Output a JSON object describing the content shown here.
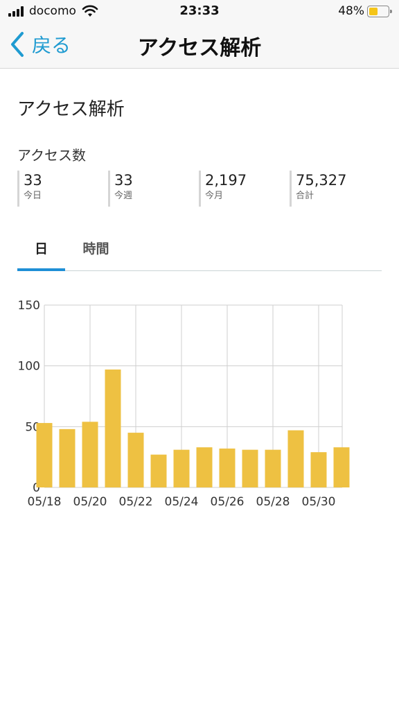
{
  "status_bar": {
    "carrier": "docomo",
    "time": "23:33",
    "battery_percent": "48%",
    "battery_level": 0.48,
    "battery_color": "#f5c518"
  },
  "nav": {
    "back_label": "戻る",
    "title": "アクセス解析",
    "accent_color": "#1f9bd1"
  },
  "page": {
    "heading": "アクセス解析",
    "section_label": "アクセス数"
  },
  "stats": [
    {
      "value": "33",
      "label": "今日"
    },
    {
      "value": "33",
      "label": "今週"
    },
    {
      "value": "2,197",
      "label": "今月"
    },
    {
      "value": "75,327",
      "label": "合計"
    }
  ],
  "tabs": [
    {
      "label": "日",
      "active": true
    },
    {
      "label": "時間",
      "active": false
    }
  ],
  "chart_data": {
    "type": "bar",
    "categories": [
      "05/18",
      "05/19",
      "05/20",
      "05/21",
      "05/22",
      "05/23",
      "05/24",
      "05/25",
      "05/26",
      "05/27",
      "05/28",
      "05/29",
      "05/30",
      "05/31"
    ],
    "values": [
      53,
      48,
      54,
      97,
      45,
      27,
      31,
      33,
      32,
      31,
      31,
      47,
      29,
      33
    ],
    "tick_labels_x": [
      "05/18",
      "05/20",
      "05/22",
      "05/24",
      "05/26",
      "05/28",
      "05/30"
    ],
    "yticks": [
      0,
      50,
      100,
      150
    ],
    "ylim": [
      0,
      150
    ],
    "grid": true,
    "bar_color": "#eec142",
    "title": "",
    "xlabel": "",
    "ylabel": ""
  }
}
